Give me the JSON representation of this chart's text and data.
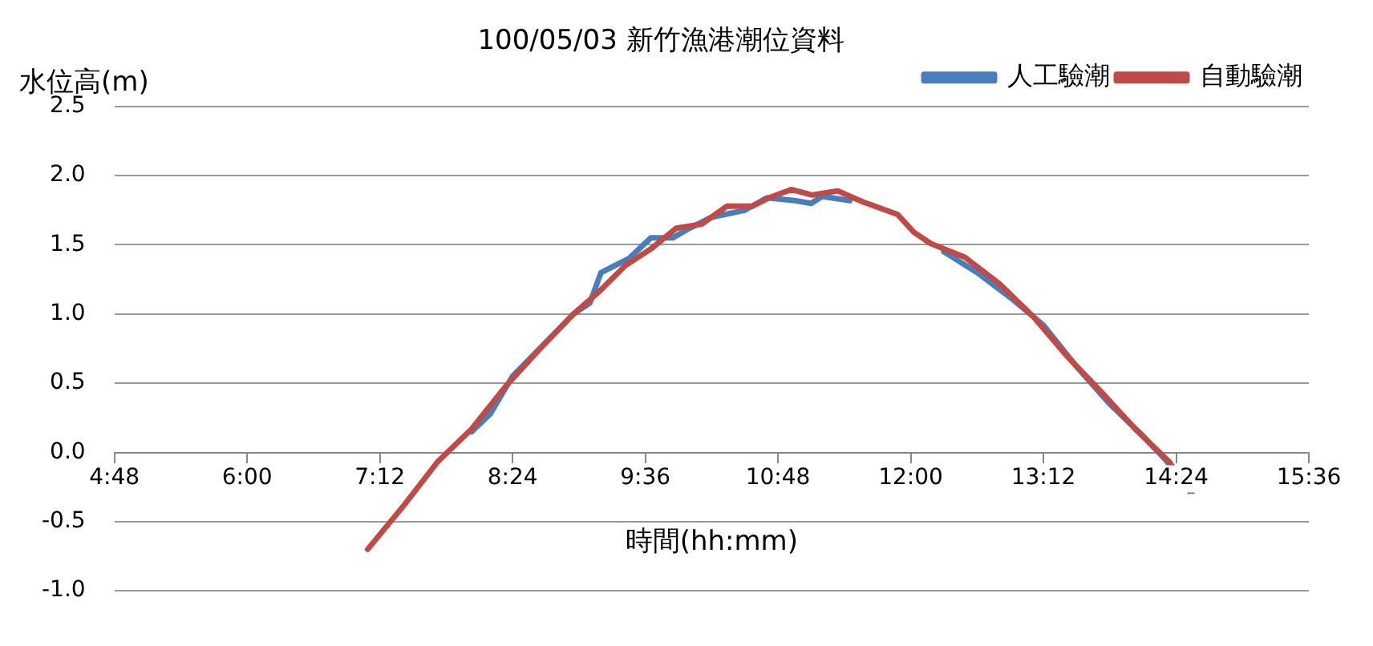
{
  "chart_data": {
    "type": "line",
    "title": "100/05/03 新竹漁港潮位資料",
    "ylabel": "水位高(m)",
    "xlabel": "時間(hh:mm)",
    "xlim": [
      4.8,
      15.6
    ],
    "xticks": [
      {
        "value": 4.8,
        "label": "4:48"
      },
      {
        "value": 6,
        "label": "6:00"
      },
      {
        "value": 7.2,
        "label": "7:12"
      },
      {
        "value": 8.4,
        "label": "8:24"
      },
      {
        "value": 9.6,
        "label": "9:36"
      },
      {
        "value": 10.8,
        "label": "10:48"
      },
      {
        "value": 12,
        "label": "12:00"
      },
      {
        "value": 13.2,
        "label": "13:12"
      },
      {
        "value": 14.4,
        "label": "14:24"
      },
      {
        "value": 15.6,
        "label": "15:36"
      }
    ],
    "ylim": [
      -1,
      2.5
    ],
    "yticks": [
      {
        "value": -1,
        "label": "-1.0"
      },
      {
        "value": -0.5,
        "label": "-0.5"
      },
      {
        "value": 0,
        "label": "0.0"
      },
      {
        "value": 0.5,
        "label": "0.5"
      },
      {
        "value": 1,
        "label": "1.0"
      },
      {
        "value": 1.5,
        "label": "1.5"
      },
      {
        "value": 2,
        "label": "2.0"
      },
      {
        "value": 2.5,
        "label": "2.5"
      }
    ],
    "grid": "y",
    "legend": "top right",
    "line_style": "solid",
    "series": [
      {
        "name": "人工驗潮",
        "color": "#4a7ebb",
        "x": [
          8.03,
          8.2,
          8.4,
          8.95,
          9.1,
          9.2,
          9.45,
          9.65,
          9.85,
          10.0,
          10.2,
          10.5,
          10.7,
          10.95,
          11.1,
          11.2,
          11.45,
          11.9,
          12.3,
          12.6,
          12.9,
          13.2,
          13.5,
          13.8,
          14.1,
          14.3,
          14.55
        ],
        "values": [
          0.15,
          0.28,
          0.55,
          1.0,
          1.08,
          1.3,
          1.4,
          1.55,
          1.55,
          1.62,
          1.7,
          1.75,
          1.84,
          1.82,
          1.8,
          1.85,
          1.82,
          null,
          1.45,
          1.3,
          1.12,
          0.92,
          0.62,
          0.35,
          0.12,
          -0.05,
          -0.28
        ]
      },
      {
        "name": "自動驗潮",
        "color": "#be4b48",
        "x": [
          7.09,
          7.42,
          7.72,
          8.03,
          8.34,
          8.65,
          8.95,
          9.18,
          9.42,
          9.65,
          9.88,
          10.11,
          10.34,
          10.57,
          10.72,
          10.92,
          11.11,
          11.34,
          11.57,
          11.88,
          12.03,
          12.18,
          12.49,
          12.8,
          13.11,
          13.42,
          13.72,
          14.03,
          14.34,
          14.52
        ],
        "values": [
          -0.7,
          -0.38,
          -0.07,
          0.17,
          0.48,
          0.75,
          1.0,
          1.16,
          1.35,
          1.47,
          1.62,
          1.65,
          1.78,
          1.78,
          1.84,
          1.9,
          1.86,
          1.89,
          1.81,
          1.72,
          1.59,
          1.51,
          1.41,
          1.22,
          0.98,
          0.69,
          0.44,
          0.17,
          -0.07,
          -0.28
        ]
      }
    ]
  }
}
